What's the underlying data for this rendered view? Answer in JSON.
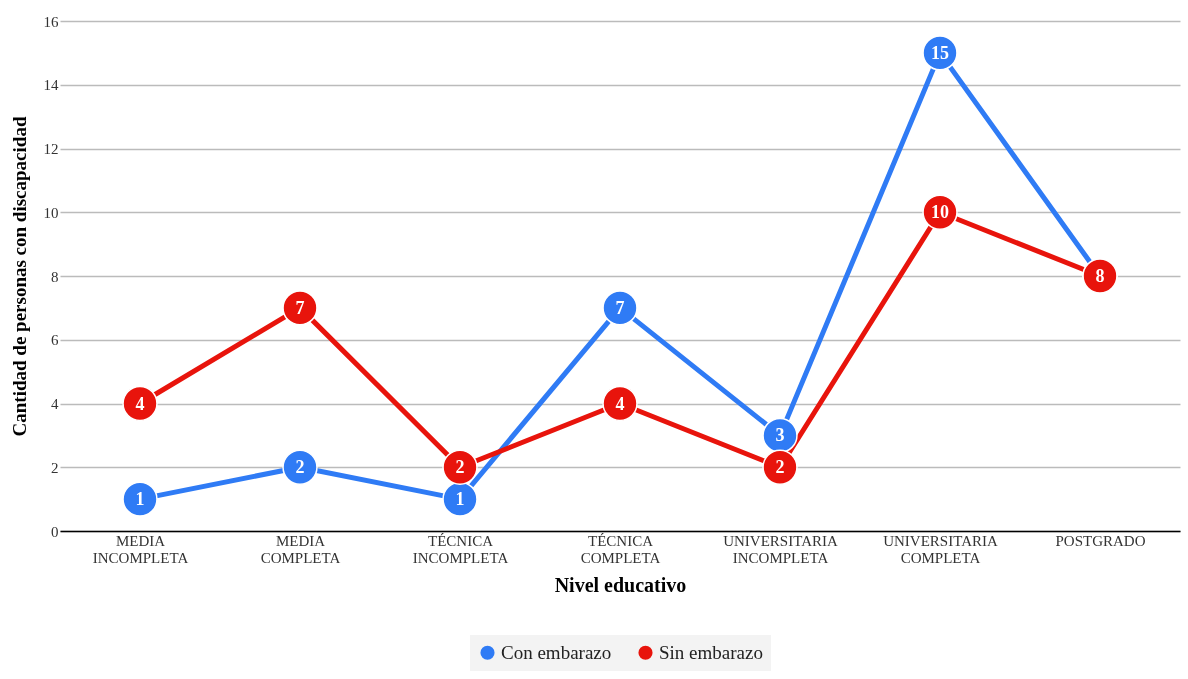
{
  "chart_data": {
    "type": "line",
    "xlabel": "Nivel educativo",
    "ylabel": "Cantidad de personas con discapacidad",
    "categories": [
      "MEDIA INCOMPLETA",
      "MEDIA COMPLETA",
      "TÉCNICA INCOMPLETA",
      "TÉCNICA COMPLETA",
      "UNIVERSITARIA INCOMPLETA",
      "UNIVERSITARIA COMPLETA",
      "POSTGRADO"
    ],
    "series": [
      {
        "name": "Con embarazo",
        "color": "#2f7bf5",
        "values": [
          1,
          2,
          1,
          7,
          3,
          15,
          8
        ],
        "value_labels": [
          "1",
          "2",
          "1",
          "7",
          "3",
          "15",
          null
        ]
      },
      {
        "name": "Sin embarazo",
        "color": "#e8140c",
        "values": [
          4,
          7,
          2,
          4,
          2,
          10,
          8
        ],
        "value_labels": [
          "4",
          "7",
          "2",
          "4",
          "2",
          "10",
          "8"
        ]
      }
    ],
    "ylim": [
      0,
      16
    ],
    "yticks": [
      0,
      2,
      4,
      6,
      8,
      10,
      12,
      14,
      16
    ],
    "grid": "y",
    "legend": "bottom",
    "marker": "circle"
  }
}
